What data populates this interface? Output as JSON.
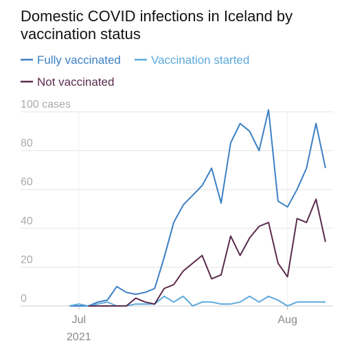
{
  "chart_data": {
    "type": "line",
    "title": "Domestic COVID infections in Iceland by vaccination status",
    "categories": [
      null,
      "Jul",
      null,
      null,
      null,
      null,
      null,
      null,
      null,
      null,
      null,
      null,
      null,
      null,
      null,
      null,
      null,
      null,
      null,
      null,
      null,
      null,
      null,
      "Aug",
      null,
      null,
      null,
      null
    ],
    "x_year_label": "2021",
    "series": [
      {
        "name": "Fully vaccinated",
        "color": "#3b7fc4",
        "values": [
          0,
          0,
          0,
          2,
          3,
          10,
          7,
          6,
          7,
          9,
          25,
          43,
          52,
          57,
          62,
          71,
          53,
          84,
          94,
          90,
          80,
          101,
          54,
          51,
          60,
          71,
          94,
          71
        ]
      },
      {
        "name": "Vaccination started",
        "color": "#5ba9dc",
        "values": [
          0,
          1,
          0,
          1,
          2,
          0,
          0,
          1,
          1,
          1,
          5,
          2,
          5,
          0,
          2,
          2,
          1,
          1,
          2,
          5,
          2,
          5,
          3,
          0,
          2,
          2,
          2,
          2
        ]
      },
      {
        "name": "Not vaccinated",
        "color": "#5a2a4c",
        "values": [
          null,
          null,
          0,
          0,
          0,
          0,
          0,
          4,
          2,
          1,
          9,
          11,
          18,
          22,
          26,
          14,
          16,
          36,
          26,
          35,
          41,
          43,
          22,
          15,
          45,
          43,
          55,
          33
        ]
      }
    ],
    "ylim": [
      0,
      100
    ],
    "yticks": [
      0,
      20,
      40,
      60,
      80,
      {
        "value": 100,
        "label": "100 cases"
      }
    ],
    "grid": true
  }
}
